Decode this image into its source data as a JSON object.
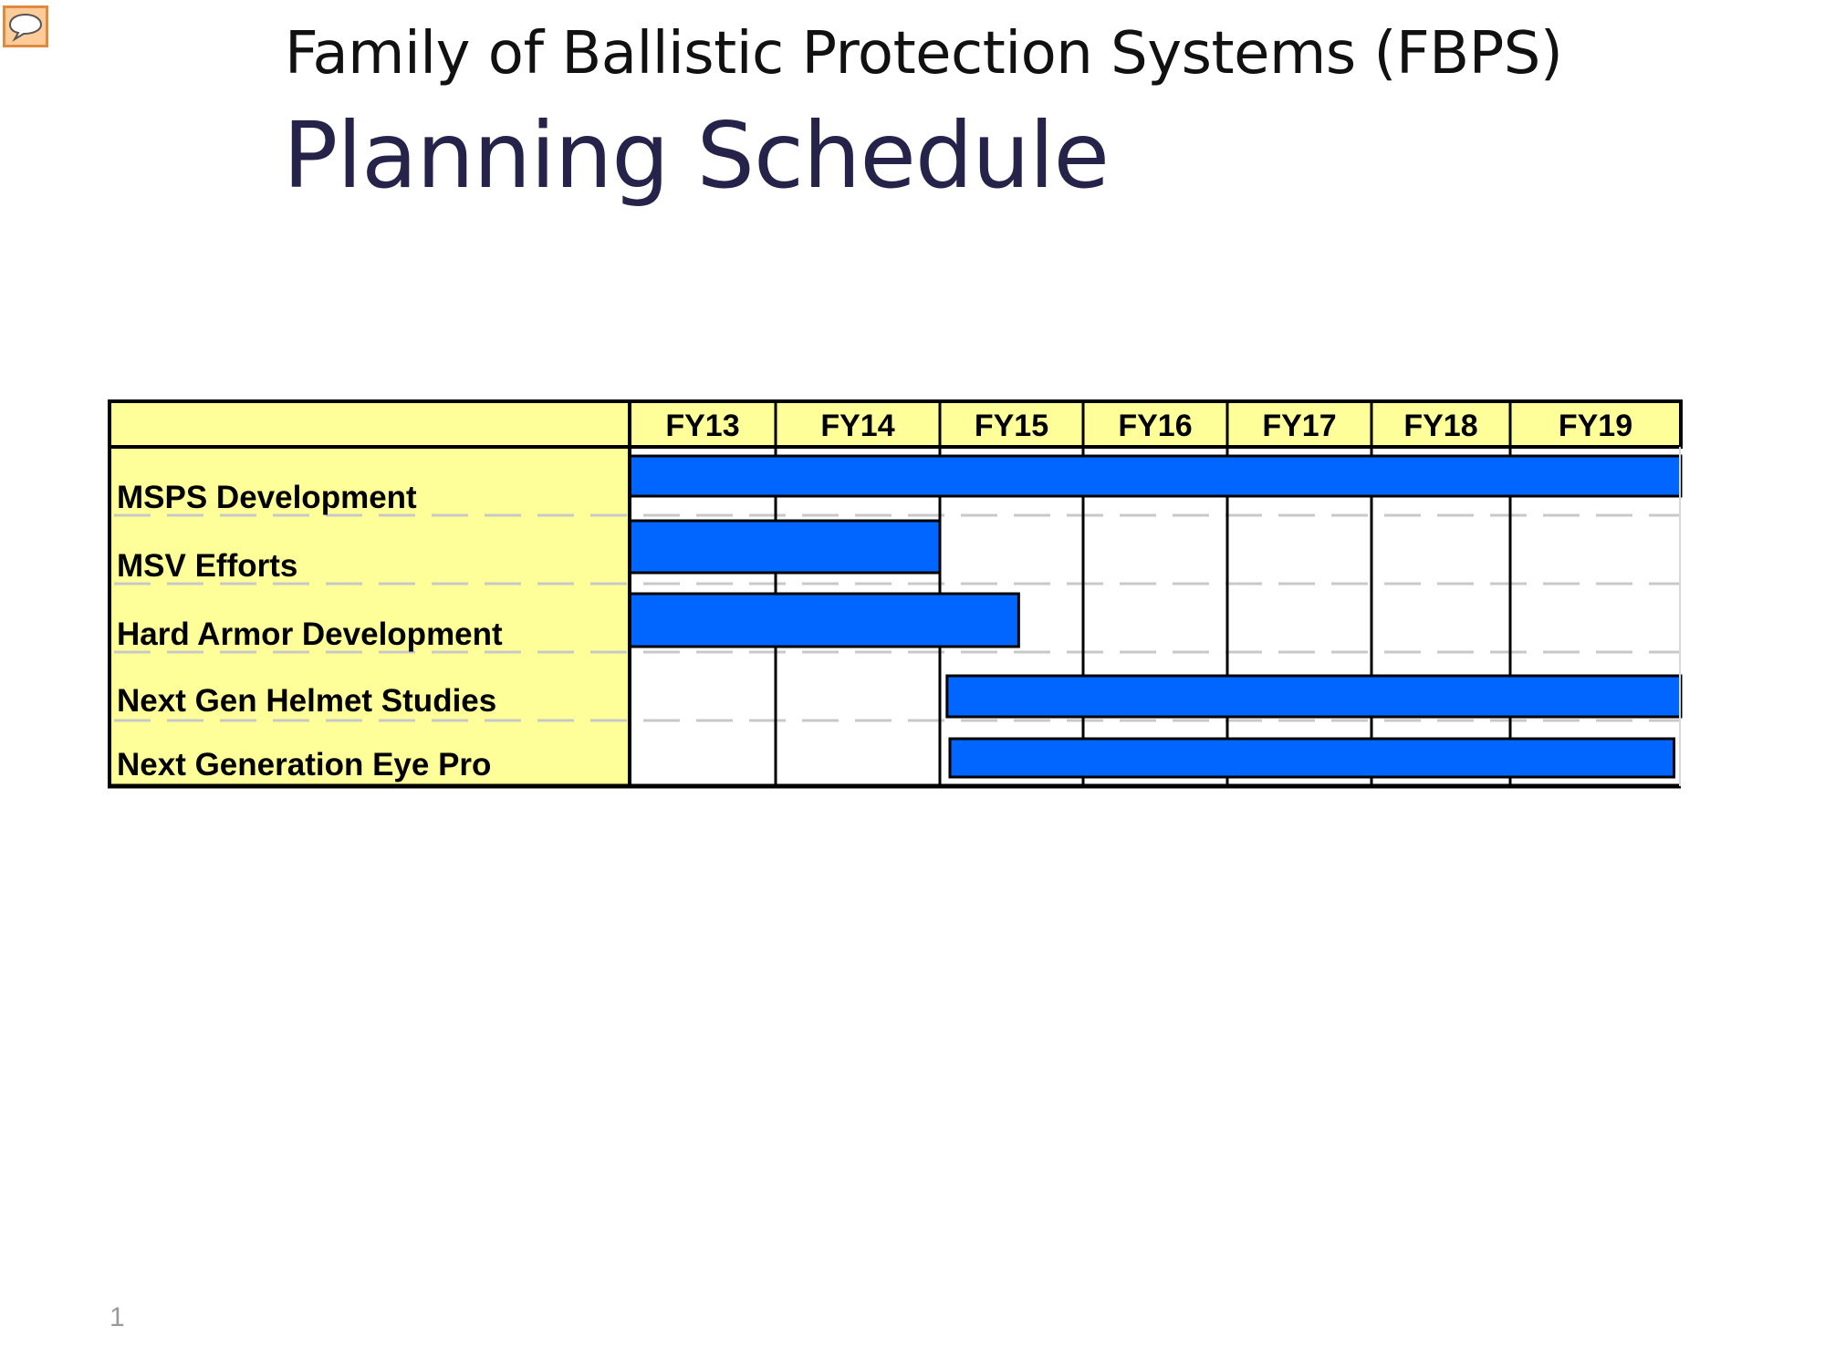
{
  "slide": {
    "title_line1": "Family of Ballistic Protection Systems (FBPS)",
    "title_line2": "Planning Schedule",
    "page_number": "1",
    "comment_icon": "speech-bubble-icon"
  },
  "colors": {
    "label_fill": "#ffff99",
    "bar_fill": "#0066ff",
    "grid_dash": "#c8c8c8",
    "title_dark": "#26234a",
    "comment_icon_fill": "#ffcc99",
    "comment_icon_border": "#e08a40"
  },
  "chart_data": {
    "type": "gantt",
    "title": "",
    "categories": [
      "FY13",
      "FY14",
      "FY15",
      "FY16",
      "FY17",
      "FY18",
      "FY19"
    ],
    "tasks": [
      {
        "name": "MSPS Development",
        "start": 0,
        "end": 7
      },
      {
        "name": "MSV Efforts",
        "start": 0,
        "end": 2
      },
      {
        "name": "Hard Armor Development",
        "start": 0,
        "end": 2.55
      },
      {
        "name": "Next Gen Helmet Studies",
        "start": 2.05,
        "end": 7
      },
      {
        "name": "Next Generation Eye Pro",
        "start": 2.07,
        "end": 6.96
      }
    ]
  }
}
